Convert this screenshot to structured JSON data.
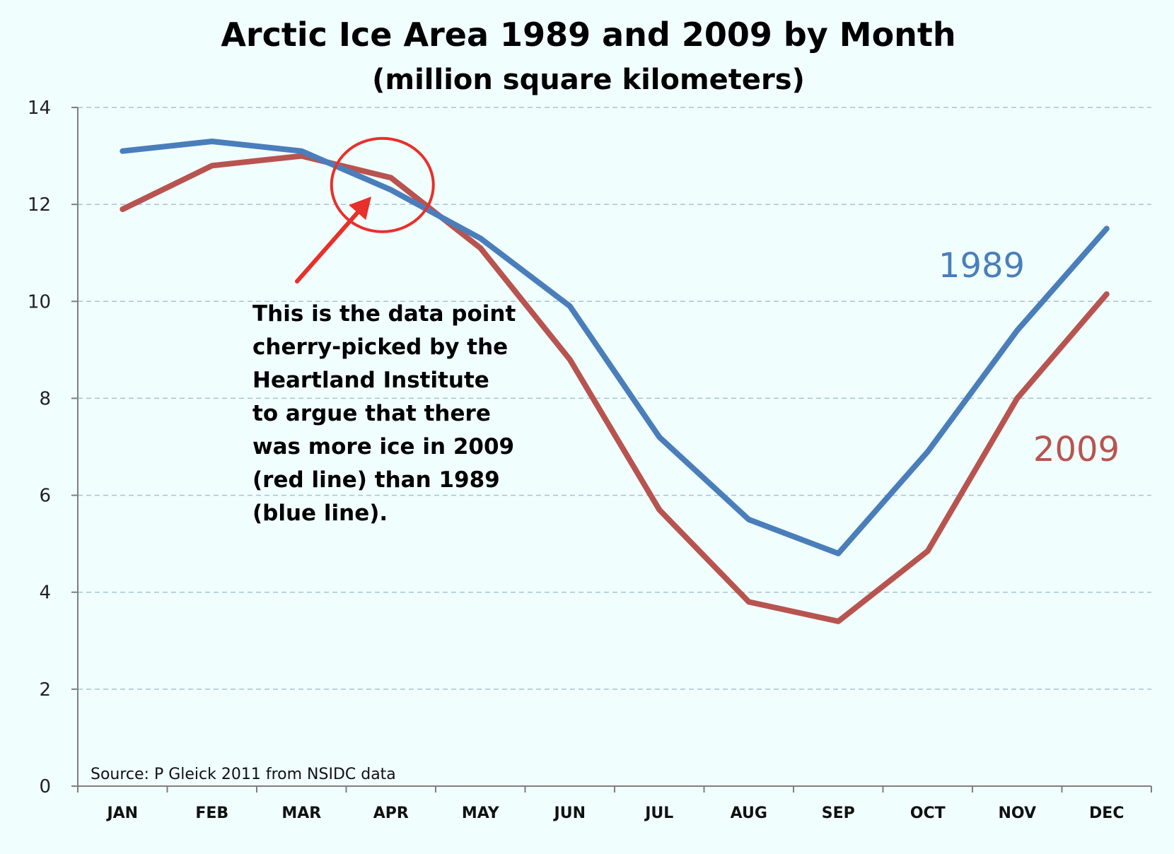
{
  "chart_data": {
    "type": "line",
    "title": "Arctic Ice Area 1989 and 2009 by Month",
    "subtitle": "(million square kilometers)",
    "categories": [
      "JAN",
      "FEB",
      "MAR",
      "APR",
      "MAY",
      "JUN",
      "JUL",
      "AUG",
      "SEP",
      "OCT",
      "NOV",
      "DEC"
    ],
    "ylim": [
      0,
      14
    ],
    "yticks": [
      0,
      2,
      4,
      6,
      8,
      10,
      12,
      14
    ],
    "grid": true,
    "series": [
      {
        "name": "1989",
        "color": "#4a7ebb",
        "values": [
          13.1,
          13.3,
          13.1,
          12.3,
          11.3,
          9.9,
          7.2,
          5.5,
          4.8,
          6.9,
          9.4,
          11.5
        ]
      },
      {
        "name": "2009",
        "color": "#b85450",
        "values": [
          11.9,
          12.8,
          13.0,
          12.55,
          11.1,
          8.8,
          5.7,
          3.8,
          3.4,
          4.85,
          8.0,
          10.15
        ]
      }
    ],
    "annotation": {
      "lines": [
        "This is the data point",
        "cherry-picked by the",
        "Heartland Institute",
        "to argue that there",
        "was more ice in 2009",
        "(red line) than 1989",
        "(blue line)."
      ],
      "highlight_category": "APR",
      "highlight_value": 12.4,
      "color": "#e8302a"
    },
    "source": "Source: P Gleick 2011 from NSIDC data"
  }
}
